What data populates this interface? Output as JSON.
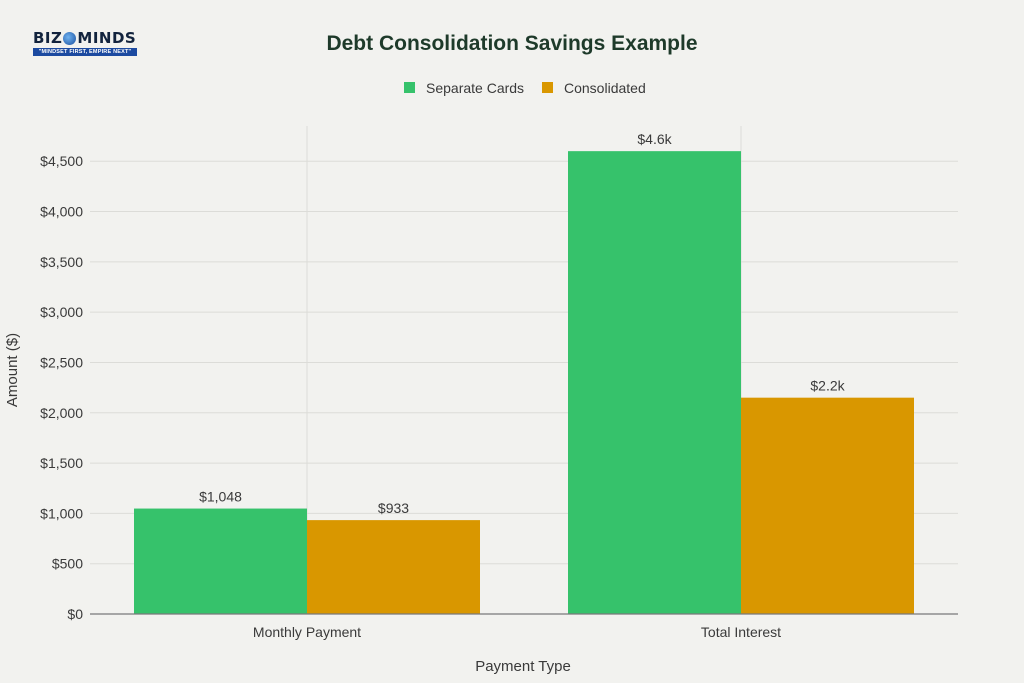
{
  "brand": {
    "logo_left": "BIZ",
    "logo_right": "MINDS",
    "tagline": "\"MINDSET FIRST, EMPIRE NEXT\""
  },
  "colors": {
    "background": "#f2f2ef",
    "grid": "#dcdcd8",
    "axis": "#7a7a7a",
    "text": "#3a3a3a",
    "title": "#1e3a2a"
  },
  "chart_data": {
    "type": "bar",
    "title": "Debt Consolidation Savings Example",
    "xlabel": "Payment Type",
    "ylabel": "Amount ($)",
    "categories": [
      "Monthly Payment",
      "Total Interest"
    ],
    "series": [
      {
        "name": "Separate Cards",
        "color": "#36c26b",
        "values": [
          1048,
          4600
        ],
        "labels": [
          "$1,048",
          "$4.6k"
        ]
      },
      {
        "name": "Consolidated",
        "color": "#d99700",
        "values": [
          933,
          2150
        ],
        "labels": [
          "$933",
          "$2.2k"
        ]
      }
    ],
    "ylim": [
      0,
      4850
    ],
    "yticks": [
      0,
      500,
      1000,
      1500,
      2000,
      2500,
      3000,
      3500,
      4000,
      4500
    ],
    "ytick_labels": [
      "$0",
      "$500",
      "$1,000",
      "$1,500",
      "$2,000",
      "$2,500",
      "$3,000",
      "$3,500",
      "$4,000",
      "$4,500"
    ],
    "grid": true,
    "legend": "top-center"
  }
}
